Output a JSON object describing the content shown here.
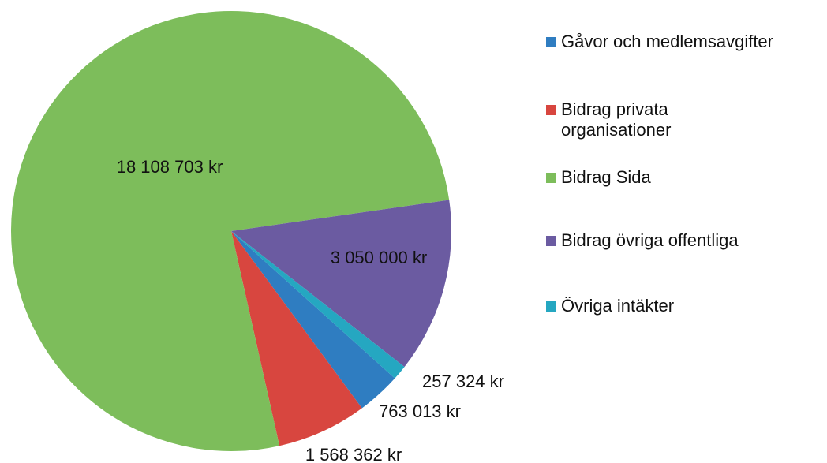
{
  "chart_data": {
    "type": "pie",
    "categories": [
      "Gåvor och medlemsavgifter",
      "Bidrag privata organisationer",
      "Bidrag Sida",
      "Bidrag övriga offentliga",
      "Övriga intäkter"
    ],
    "values": [
      763013,
      1568362,
      18108703,
      3050000,
      257324
    ],
    "value_labels": [
      "763 013 kr",
      "1 568 362 kr",
      "18 108 703 kr",
      "3 050 000 kr",
      "257 324 kr"
    ],
    "colors": [
      "#2f7dc1",
      "#d8463f",
      "#7dbd5b",
      "#6b5ba1",
      "#25a7c1"
    ],
    "legend": "right"
  }
}
